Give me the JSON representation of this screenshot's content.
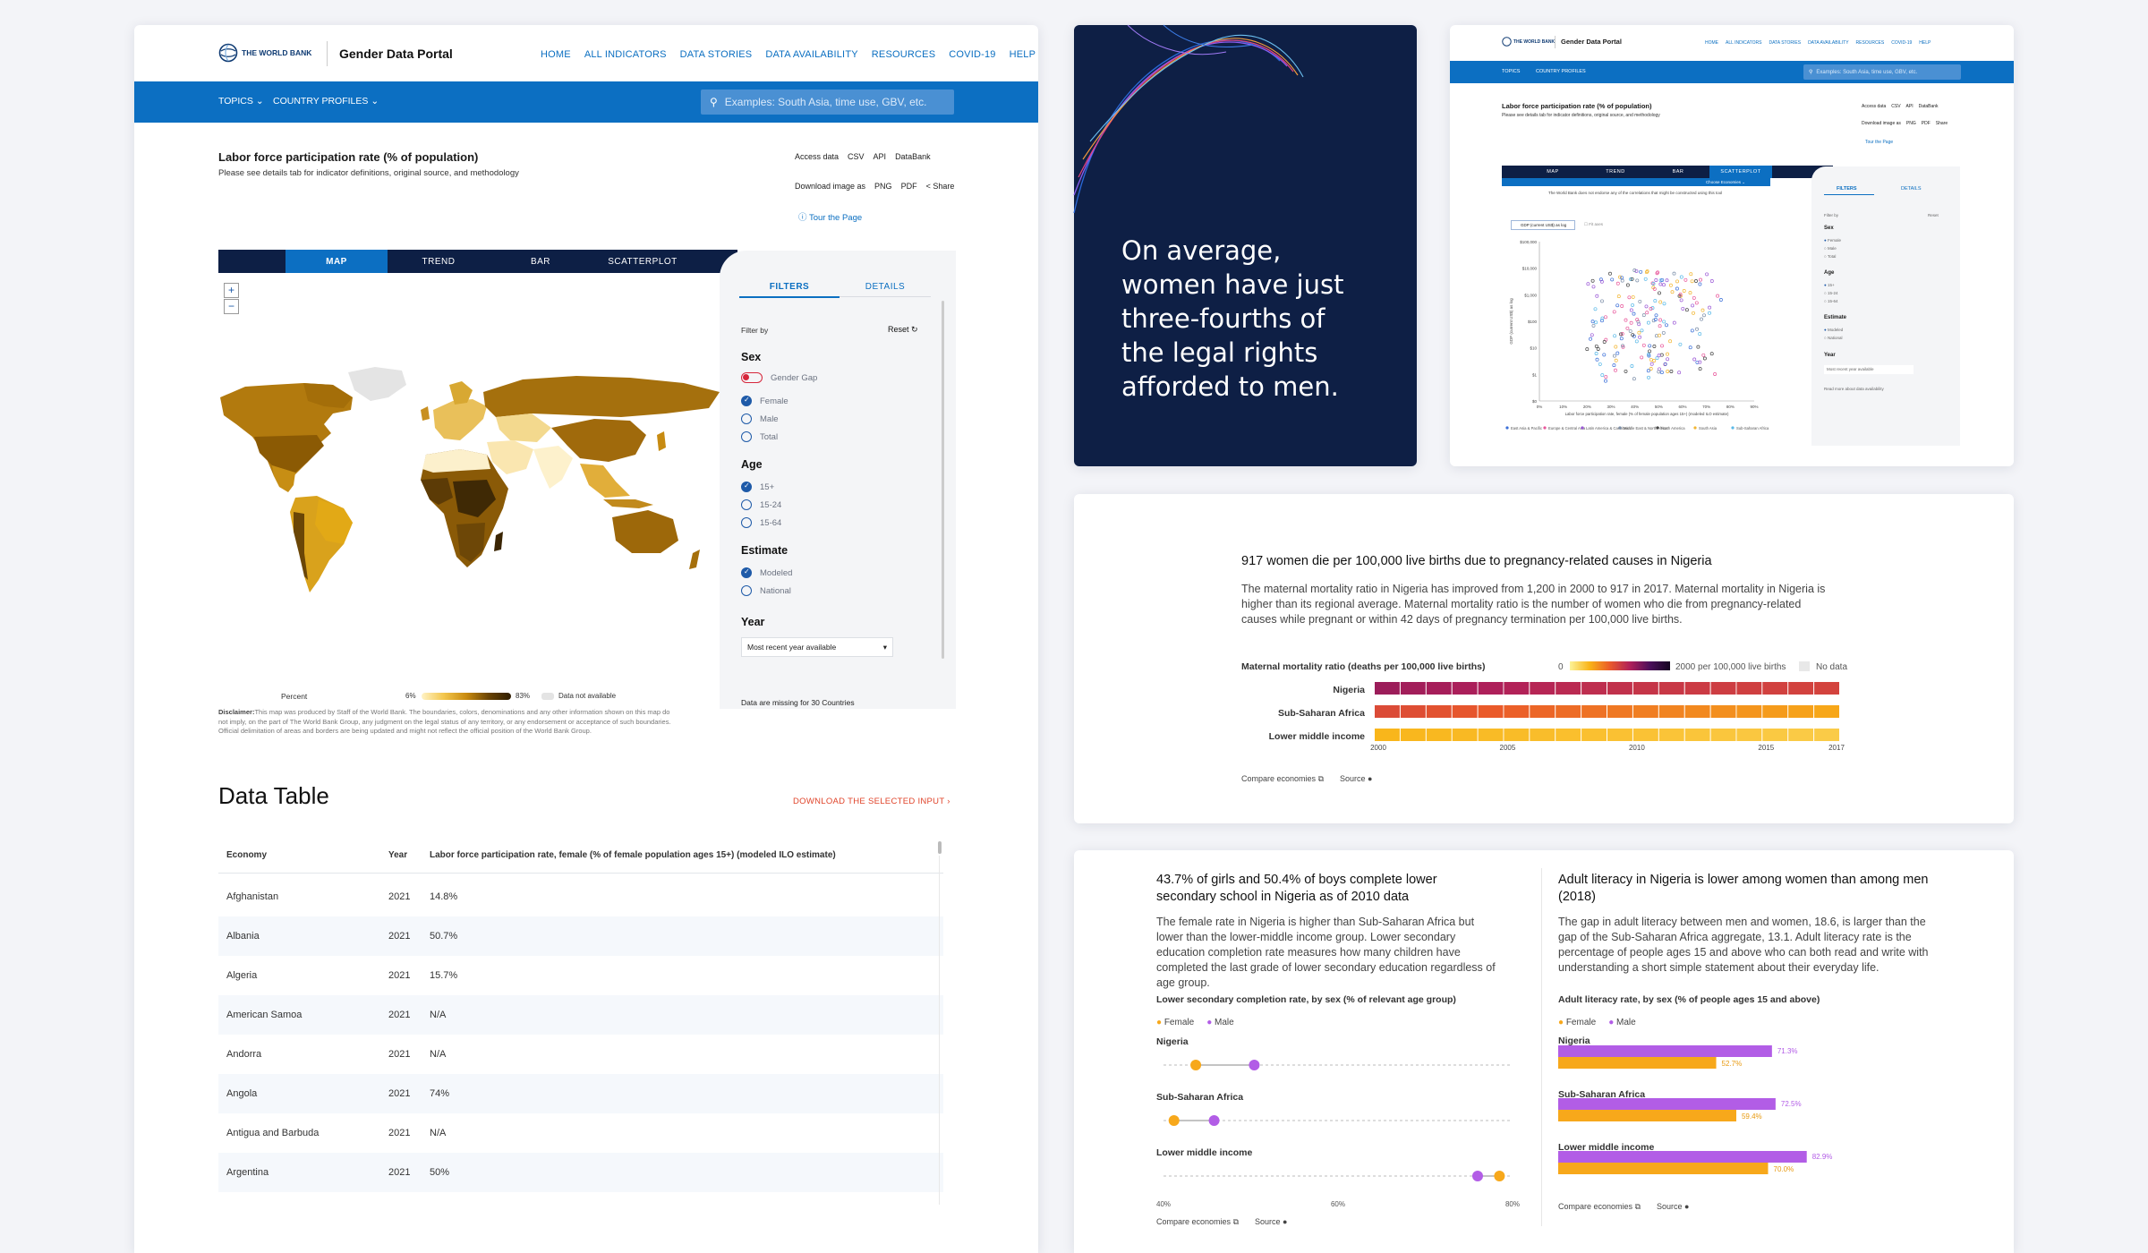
{
  "portal": {
    "logo_text": "THE WORLD BANK",
    "title": "Gender Data Portal",
    "nav": [
      "HOME",
      "ALL INDICATORS",
      "DATA STORIES",
      "DATA AVAILABILITY",
      "RESOURCES",
      "COVID-19",
      "HELP"
    ],
    "topics": "TOPICS",
    "country_profiles": "COUNTRY PROFILES",
    "search_placeholder": "Examples: South Asia, time use, GBV, etc.",
    "indicator_title": "Labor force participation rate (% of population)",
    "indicator_sub": "Please see details tab for indicator definitions, original source, and methodology",
    "access_label": "Access data",
    "access_links": [
      "CSV",
      "API",
      "DataBank"
    ],
    "download_label": "Download image as",
    "download_links": [
      "PNG",
      "PDF"
    ],
    "share": "Share",
    "tour": "Tour the Page",
    "tabs": [
      "MAP",
      "TREND",
      "BAR",
      "SCATTERPLOT"
    ],
    "filter_tabs": [
      "FILTERS",
      "DETAILS"
    ],
    "filter_by": "Filter by",
    "reset": "Reset",
    "sex_head": "Sex",
    "gender_gap": "Gender Gap",
    "sex_options": [
      "Female",
      "Male",
      "Total"
    ],
    "age_head": "Age",
    "age_options": [
      "15+",
      "15-24",
      "15-64"
    ],
    "estimate_head": "Estimate",
    "estimate_options": [
      "Modeled",
      "National"
    ],
    "year_head": "Year",
    "year_value": "Most recent year available",
    "missing_note": "Data are missing for 30 Countries",
    "legend_percent": "Percent",
    "legend_min": "6%",
    "legend_max": "83%",
    "legend_na": "Data not available",
    "disclaimer_label": "Disclaimer:",
    "disclaimer": "This map was produced by Staff of the World Bank. The boundaries, colors, denominations and any other information shown on this map do not imply, on the part of The World Bank Group, any judgment on the legal status of any territory, or any endorsement or acceptance of such boundaries. Official delimitation of areas and borders are being updated and might not reflect the official position of the World Bank Group.",
    "data_table_title": "Data Table",
    "download_input": "DOWNLOAD THE SELECTED INPUT",
    "table_headers": [
      "Economy",
      "Year",
      "Labor force participation rate, female (% of female population ages 15+) (modeled ILO estimate)"
    ],
    "table_rows": [
      [
        "Afghanistan",
        "2021",
        "14.8%"
      ],
      [
        "Albania",
        "2021",
        "50.7%"
      ],
      [
        "Algeria",
        "2021",
        "15.7%"
      ],
      [
        "American Samoa",
        "2021",
        "N/A"
      ],
      [
        "Andorra",
        "2021",
        "N/A"
      ],
      [
        "Angola",
        "2021",
        "74%"
      ],
      [
        "Antigua and Barbuda",
        "2021",
        "N/A"
      ],
      [
        "Argentina",
        "2021",
        "50%"
      ]
    ]
  },
  "quote_card": {
    "text": "On average, women have just three-fourths of the legal rights afforded to men.",
    "bg_color": "#0e1f45"
  },
  "mini_portal": {
    "logo_text": "THE WORLD BANK",
    "title": "Gender Data Portal",
    "nav": [
      "HOME",
      "ALL INDICATORS",
      "DATA STORIES",
      "DATA AVAILABILITY",
      "RESOURCES",
      "COVID-19",
      "HELP"
    ],
    "topics": "TOPICS",
    "country_profiles": "COUNTRY PROFILES",
    "search_placeholder": "Examples: South Asia, time use, GBV, etc.",
    "indicator_title": "Labor force participation rate (% of population)",
    "indicator_sub": "Please see details tab for indicator definitions, original source, and methodology",
    "access_label": "Access data",
    "access_links": [
      "CSV",
      "API",
      "DataBank"
    ],
    "download_label": "Download image as",
    "download_links": [
      "PNG",
      "PDF"
    ],
    "share": "Share",
    "tour": "Tour the Page",
    "tabs": [
      "MAP",
      "TREND",
      "BAR",
      "SCATTERPLOT"
    ],
    "choose_economies": "Choose Economies",
    "disclaimer": "The World Bank does not endorse any of the correlations that might be constructed using this tool",
    "x_select": "GDP (current US$) as log",
    "fit_label": "Fit axes",
    "y_axis_label": "GDP (current US$) as log",
    "x_axis_label": "Labor force participation rate, female (% of female population ages 15+) (modeled ILO estimate)",
    "y_ticks": [
      "$100,000",
      "$10,000",
      "$1,000",
      "$100",
      "$10",
      "$1",
      "$0"
    ],
    "x_ticks": [
      "0%",
      "10%",
      "20%",
      "30%",
      "40%",
      "50%",
      "60%",
      "70%",
      "80%",
      "90%"
    ],
    "legend": [
      "East Asia & Pacific",
      "Europe & Central Asia",
      "Latin America & Caribbean",
      "Middle East & North Africa",
      "North America",
      "South Asia",
      "Sub-Saharan Africa"
    ],
    "filter_tabs": [
      "FILTERS",
      "DETAILS"
    ],
    "filter_by": "Filter by",
    "reset": "Reset",
    "sex_head": "Sex",
    "sex_options": [
      "Female",
      "Male",
      "Total"
    ],
    "age_head": "Age",
    "age_options": [
      "15+",
      "15-24",
      "15-64"
    ],
    "estimate_head": "Estimate",
    "estimate_options": [
      "Modeled",
      "National"
    ],
    "year_head": "Year",
    "year_value": "Most recent year available",
    "read_more": "Read more about data availability"
  },
  "mmr_card": {
    "title": "917 women die per 100,000 live births due to pregnancy-related causes in Nigeria",
    "body": "The maternal mortality ratio in Nigeria has improved from 1,200 in 2000 to 917 in 2017. Maternal mortality in Nigeria is higher than its regional average. Maternal mortality ratio is the number of women who die from pregnancy-related causes while pregnant or within 42 days of pregnancy termination per 100,000 live births.",
    "chart_label": "Maternal mortality ratio (deaths per 100,000 live births)",
    "scale_min": "0",
    "scale_max": "2000 per 100,000 live births",
    "no_data": "No data",
    "rows": [
      "Nigeria",
      "Sub-Saharan Africa",
      "Lower middle income"
    ],
    "years": [
      "2000",
      "2005",
      "2010",
      "2015",
      "2017"
    ],
    "compare": "Compare economies",
    "source": "Source"
  },
  "edu_card": {
    "title": "43.7% of girls and 50.4% of boys complete lower secondary school in Nigeria as of 2010 data",
    "body": "The female rate in Nigeria is higher than Sub-Saharan Africa but lower than the lower-middle income group. Lower secondary education completion rate measures how many children have completed the last grade of lower secondary education regardless of age group.",
    "chart_label": "Lower secondary completion rate, by sex (% of relevant age group)",
    "legend": [
      "Female",
      "Male"
    ],
    "rows": [
      "Nigeria",
      "Sub-Saharan Africa",
      "Lower middle income"
    ],
    "x_ticks": [
      "40%",
      "60%",
      "80%"
    ],
    "compare": "Compare economies",
    "source": "Source"
  },
  "lit_card": {
    "title": "Adult literacy in Nigeria is lower among women than among men (2018)",
    "body": "The gap in adult literacy between men and women, 18.6, is larger than the gap of the Sub-Saharan Africa aggregate, 13.1. Adult literacy rate is the percentage of people ages 15 and above who can both read and write with understanding a short simple statement about their everyday life.",
    "chart_label": "Adult literacy rate, by sex (% of people ages 15 and above)",
    "legend": [
      "Female",
      "Male"
    ],
    "rows": [
      "Nigeria",
      "Sub-Saharan Africa",
      "Lower middle income"
    ],
    "male_values": [
      "71.3%",
      "72.5%",
      "82.9%"
    ],
    "female_values": [
      "52.7%",
      "59.4%",
      "70.0%"
    ],
    "compare": "Compare economies",
    "source": "Source"
  },
  "chart_data": [
    {
      "type": "heatmap",
      "title": "Maternal mortality ratio (deaths per 100,000 live births)",
      "categories": [
        "Nigeria",
        "Sub-Saharan Africa",
        "Lower middle income"
      ],
      "x": [
        2000,
        2001,
        2002,
        2003,
        2004,
        2005,
        2006,
        2007,
        2008,
        2009,
        2010,
        2011,
        2012,
        2013,
        2014,
        2015,
        2016,
        2017
      ],
      "scale": [
        0,
        2000
      ],
      "series": [
        {
          "name": "Nigeria",
          "values": [
            1200,
            1170,
            1150,
            1130,
            1110,
            1090,
            1070,
            1050,
            1030,
            1010,
            990,
            975,
            960,
            950,
            940,
            930,
            925,
            917
          ]
        },
        {
          "name": "Sub-Saharan Africa",
          "values": [
            880,
            860,
            840,
            820,
            800,
            780,
            760,
            740,
            720,
            700,
            680,
            660,
            640,
            620,
            600,
            580,
            560,
            542
          ]
        },
        {
          "name": "Lower middle income",
          "values": [
            480,
            470,
            460,
            450,
            440,
            430,
            420,
            410,
            400,
            390,
            380,
            370,
            360,
            350,
            340,
            330,
            320,
            310
          ]
        }
      ]
    },
    {
      "type": "scatter",
      "title": "Lower secondary completion rate, by sex (% of relevant age group)",
      "categories": [
        "Nigeria",
        "Sub-Saharan Africa",
        "Lower middle income"
      ],
      "xlim": [
        40,
        80
      ],
      "series": [
        {
          "name": "Female",
          "values": [
            43.7,
            41.2,
            78.5
          ]
        },
        {
          "name": "Male",
          "values": [
            50.4,
            45.8,
            76.0
          ]
        }
      ]
    },
    {
      "type": "bar",
      "title": "Adult literacy rate, by sex (% of people ages 15 and above)",
      "categories": [
        "Nigeria",
        "Sub-Saharan Africa",
        "Lower middle income"
      ],
      "series": [
        {
          "name": "Male",
          "values": [
            71.3,
            72.5,
            82.9
          ]
        },
        {
          "name": "Female",
          "values": [
            52.7,
            59.4,
            70.0
          ]
        }
      ],
      "ylim": [
        0,
        100
      ]
    }
  ],
  "colors": {
    "blue": "#0c6fc2",
    "navy": "#0e1f45",
    "female": "#f7a81b",
    "male": "#b25de6"
  }
}
